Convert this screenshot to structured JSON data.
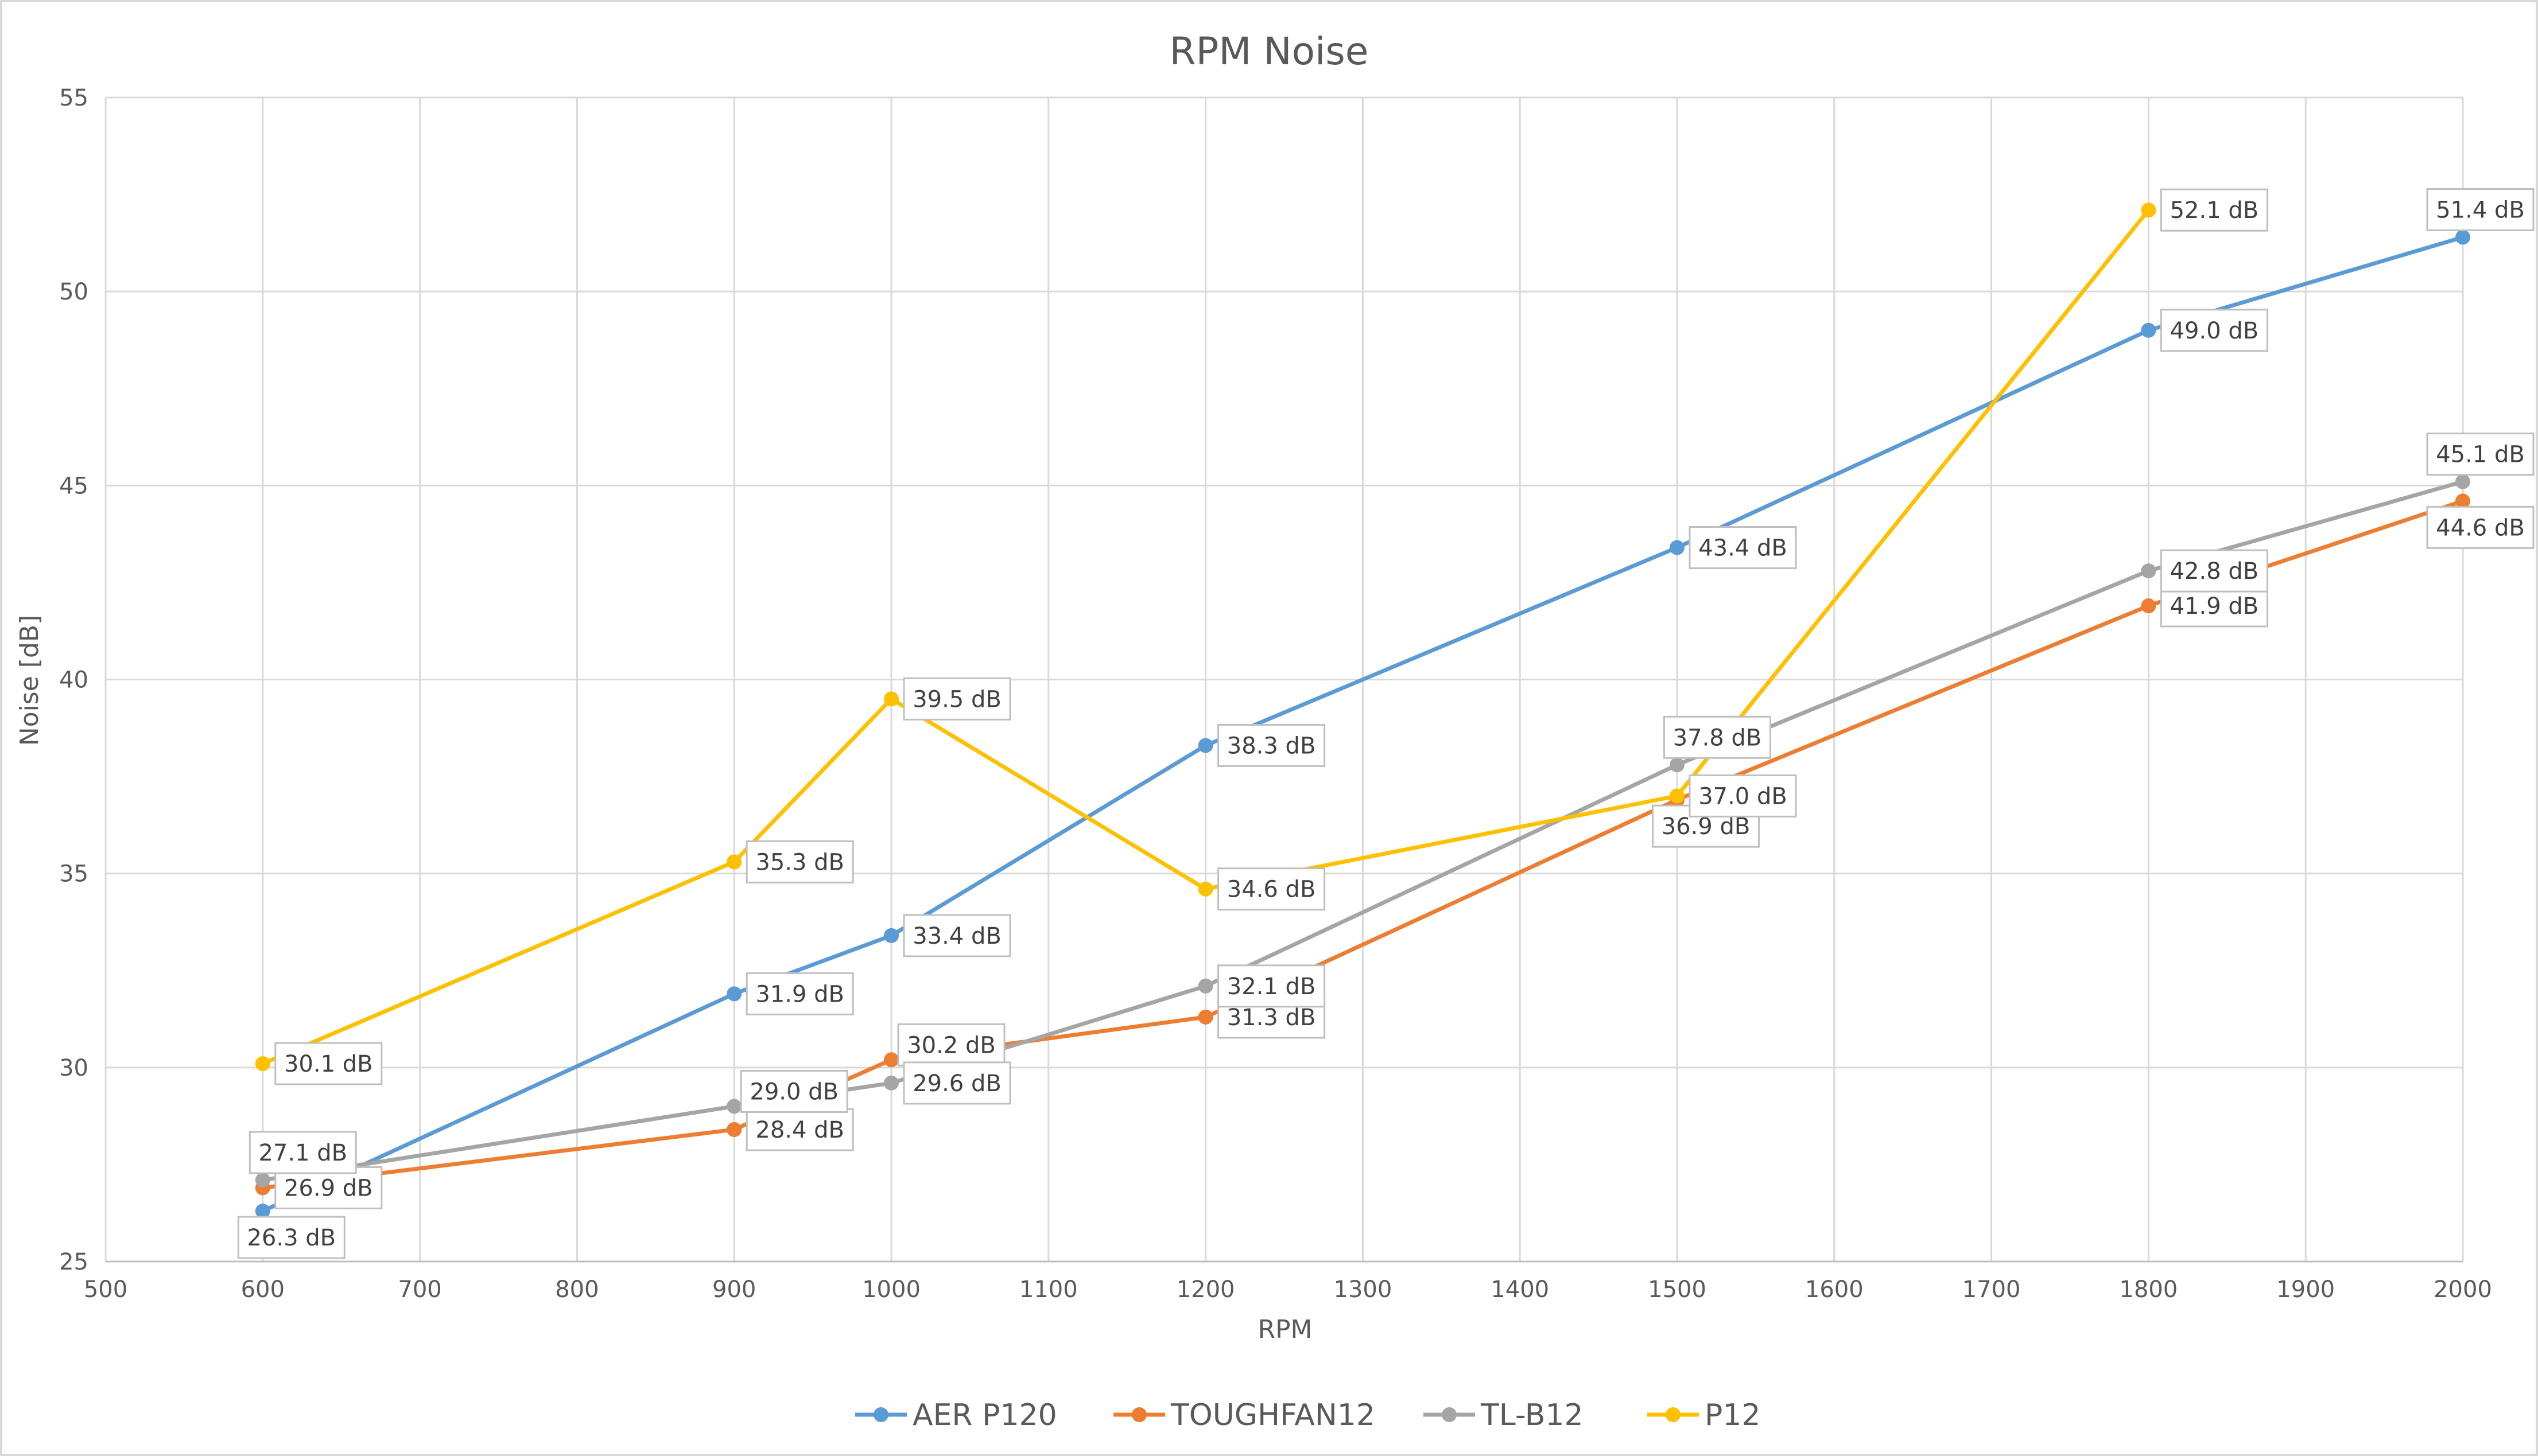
{
  "chart_data": {
    "type": "line",
    "title": "RPM Noise",
    "xlabel": "RPM",
    "ylabel": "Noise [dB]",
    "xlim": [
      500,
      2000
    ],
    "ylim": [
      25,
      55
    ],
    "x_ticks": [
      "500",
      "600",
      "700",
      "800",
      "900",
      "1000",
      "1100",
      "1200",
      "1300",
      "1400",
      "1500",
      "1600",
      "1700",
      "1800",
      "1900",
      "2000"
    ],
    "y_ticks": [
      "25",
      "30",
      "35",
      "40",
      "45",
      "50",
      "55"
    ],
    "grid": true,
    "legend_position": "bottom",
    "series": [
      {
        "name": "AER P120",
        "color": "#5B9BD5",
        "points": [
          {
            "x": 600,
            "y": 26.3,
            "label": "26.3 dB",
            "pos": "below"
          },
          {
            "x": 900,
            "y": 31.9,
            "label": "31.9 dB",
            "pos": "right"
          },
          {
            "x": 1000,
            "y": 33.4,
            "label": "33.4 dB",
            "pos": "right"
          },
          {
            "x": 1200,
            "y": 38.3,
            "label": "38.3 dB",
            "pos": "right"
          },
          {
            "x": 1500,
            "y": 43.4,
            "label": "43.4 dB",
            "pos": "right"
          },
          {
            "x": 1800,
            "y": 49.0,
            "label": "49.0 dB",
            "pos": "right"
          },
          {
            "x": 2000,
            "y": 51.4,
            "label": "51.4 dB",
            "pos": "above"
          }
        ]
      },
      {
        "name": "TOUGHFAN12",
        "color": "#ED7D31",
        "points": [
          {
            "x": 600,
            "y": 26.9,
            "label": "26.9 dB",
            "pos": "right"
          },
          {
            "x": 900,
            "y": 28.4,
            "label": "28.4 dB",
            "pos": "right"
          },
          {
            "x": 1000,
            "y": 30.2,
            "label": "30.2 dB",
            "pos": "aboveright"
          },
          {
            "x": 1200,
            "y": 31.3,
            "label": "31.3 dB",
            "pos": "right"
          },
          {
            "x": 1500,
            "y": 36.9,
            "label": "36.9 dB",
            "pos": "below"
          },
          {
            "x": 1800,
            "y": 41.9,
            "label": "41.9 dB",
            "pos": "right"
          },
          {
            "x": 2000,
            "y": 44.6,
            "label": "44.6 dB",
            "pos": "below"
          }
        ]
      },
      {
        "name": "TL-B12",
        "color": "#A5A5A5",
        "points": [
          {
            "x": 600,
            "y": 27.1,
            "label": "27.1 dB",
            "pos": "above"
          },
          {
            "x": 900,
            "y": 29.0,
            "label": "29.0 dB",
            "pos": "aboveright"
          },
          {
            "x": 1000,
            "y": 29.6,
            "label": "29.6 dB",
            "pos": "right"
          },
          {
            "x": 1200,
            "y": 32.1,
            "label": "32.1 dB",
            "pos": "right"
          },
          {
            "x": 1500,
            "y": 37.8,
            "label": "37.8 dB",
            "pos": "above"
          },
          {
            "x": 1800,
            "y": 42.8,
            "label": "42.8 dB",
            "pos": "right"
          },
          {
            "x": 2000,
            "y": 45.1,
            "label": "45.1 dB",
            "pos": "above"
          }
        ]
      },
      {
        "name": "P12",
        "color": "#FFC000",
        "points": [
          {
            "x": 600,
            "y": 30.1,
            "label": "30.1 dB",
            "pos": "right"
          },
          {
            "x": 900,
            "y": 35.3,
            "label": "35.3 dB",
            "pos": "right"
          },
          {
            "x": 1000,
            "y": 39.5,
            "label": "39.5 dB",
            "pos": "right"
          },
          {
            "x": 1200,
            "y": 34.6,
            "label": "34.6 dB",
            "pos": "right"
          },
          {
            "x": 1500,
            "y": 37.0,
            "label": "37.0 dB",
            "pos": "right"
          },
          {
            "x": 1800,
            "y": 52.1,
            "label": "52.1 dB",
            "pos": "right"
          }
        ]
      }
    ]
  }
}
